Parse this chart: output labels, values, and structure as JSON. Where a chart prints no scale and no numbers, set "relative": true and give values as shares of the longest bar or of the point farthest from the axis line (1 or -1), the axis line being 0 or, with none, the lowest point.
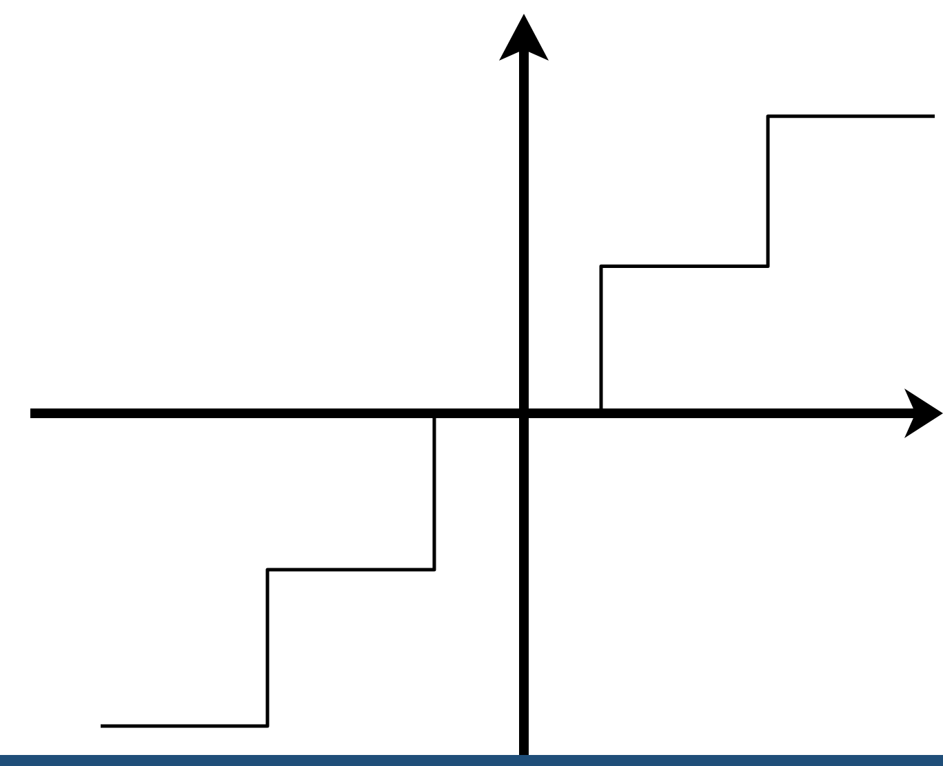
{
  "chart_data": {
    "type": "step",
    "relative": true,
    "categories": [
      null,
      null,
      null,
      null,
      null,
      null
    ],
    "series": [
      {
        "color": "#000000",
        "values": [
          -1,
          -0.5,
          0,
          0.47,
          0.95,
          0.95
        ]
      }
    ]
  }
}
